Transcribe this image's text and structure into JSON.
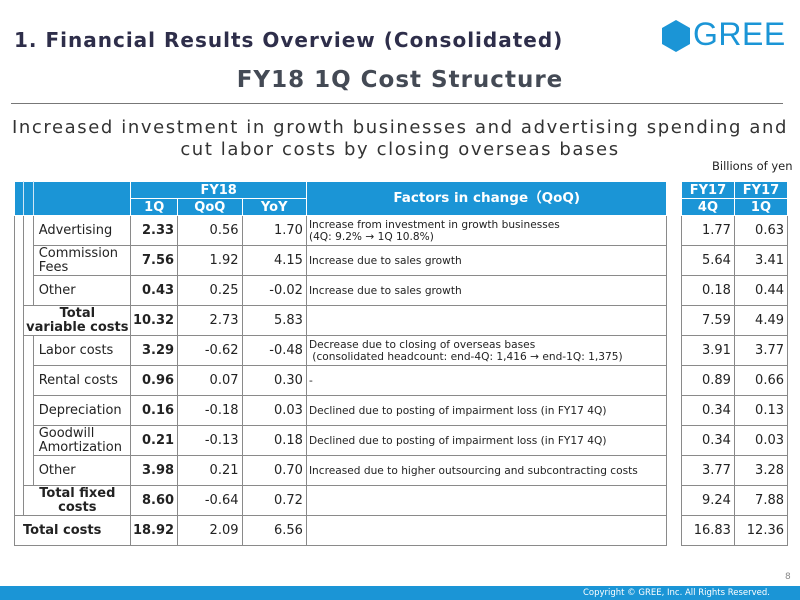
{
  "header": {
    "section_title": "1. Financial Results Overview (Consolidated)",
    "logo_text": "GREE",
    "slide_title": "FY18 1Q Cost Structure",
    "subtitle_line1": "Increased investment in growth businesses and advertising spending and",
    "subtitle_line2": "cut labor costs by closing overseas bases",
    "unit_note": "Billions of yen"
  },
  "table": {
    "headers": {
      "fy18": "FY18",
      "q1": "1Q",
      "qoq": "QoQ",
      "yoy": "YoY",
      "factors": "Factors in change（QoQ)",
      "fy17_a": "FY17",
      "q4": "4Q",
      "fy17_b": "FY17",
      "q1_prev": "1Q"
    },
    "rows": [
      {
        "label": "Advertising",
        "q1": "2.33",
        "qoq": "0.56",
        "yoy": "1.70",
        "factor_line1": "Increase from investment in growth businesses",
        "factor_line2": "(4Q: 9.2% → 1Q 10.8%)",
        "fy17_4q": "1.77",
        "fy17_1q": "0.63"
      },
      {
        "label_line1": "Commission",
        "label_line2": "Fees",
        "q1": "7.56",
        "qoq": "1.92",
        "yoy": "4.15",
        "factor": "Increase due to sales growth",
        "fy17_4q": "5.64",
        "fy17_1q": "3.41"
      },
      {
        "label": "Other",
        "q1": "0.43",
        "qoq": "0.25",
        "yoy": "-0.02",
        "factor": "Increase due to sales growth",
        "fy17_4q": "0.18",
        "fy17_1q": "0.44"
      },
      {
        "label_line1": "Total",
        "label_line2": "variable costs",
        "q1": "10.32",
        "qoq": "2.73",
        "yoy": "5.83",
        "factor": "",
        "fy17_4q": "7.59",
        "fy17_1q": "4.49"
      },
      {
        "label": "Labor costs",
        "q1": "3.29",
        "qoq": "-0.62",
        "yoy": "-0.48",
        "factor_line1": "Decrease due to closing of overseas bases",
        "factor_line2": " (consolidated headcount: end-4Q: 1,416 → end-1Q: 1,375)",
        "fy17_4q": "3.91",
        "fy17_1q": "3.77"
      },
      {
        "label": "Rental costs",
        "q1": "0.96",
        "qoq": "0.07",
        "yoy": "0.30",
        "factor": "-",
        "fy17_4q": "0.89",
        "fy17_1q": "0.66"
      },
      {
        "label": "Depreciation",
        "q1": "0.16",
        "qoq": "-0.18",
        "yoy": "0.03",
        "factor": "Declined due to posting of impairment loss (in FY17 4Q)",
        "fy17_4q": "0.34",
        "fy17_1q": "0.13"
      },
      {
        "label_line1": "Goodwill",
        "label_line2": "Amortization",
        "q1": "0.21",
        "qoq": "-0.13",
        "yoy": "0.18",
        "factor": "Declined due to posting of impairment loss (in FY17 4Q)",
        "fy17_4q": "0.34",
        "fy17_1q": "0.03"
      },
      {
        "label": "Other",
        "q1": "3.98",
        "qoq": "0.21",
        "yoy": "0.70",
        "factor": "Increased due to higher outsourcing and subcontracting costs",
        "fy17_4q": "3.77",
        "fy17_1q": "3.28"
      },
      {
        "label_line1": "Total fixed",
        "label_line2": "costs",
        "q1": "8.60",
        "qoq": "-0.64",
        "yoy": "0.72",
        "factor": "",
        "fy17_4q": "9.24",
        "fy17_1q": "7.88"
      },
      {
        "label": "Total costs",
        "q1": "18.92",
        "qoq": "2.09",
        "yoy": "6.56",
        "factor": "",
        "fy17_4q": "16.83",
        "fy17_1q": "12.36"
      }
    ]
  },
  "footer": {
    "copyright": "Copyright © GREE, Inc. All Rights Reserved.",
    "page_number": "8"
  },
  "colors": {
    "brand_blue": "#1b95d6",
    "title_dark": "#2e2e4a"
  }
}
